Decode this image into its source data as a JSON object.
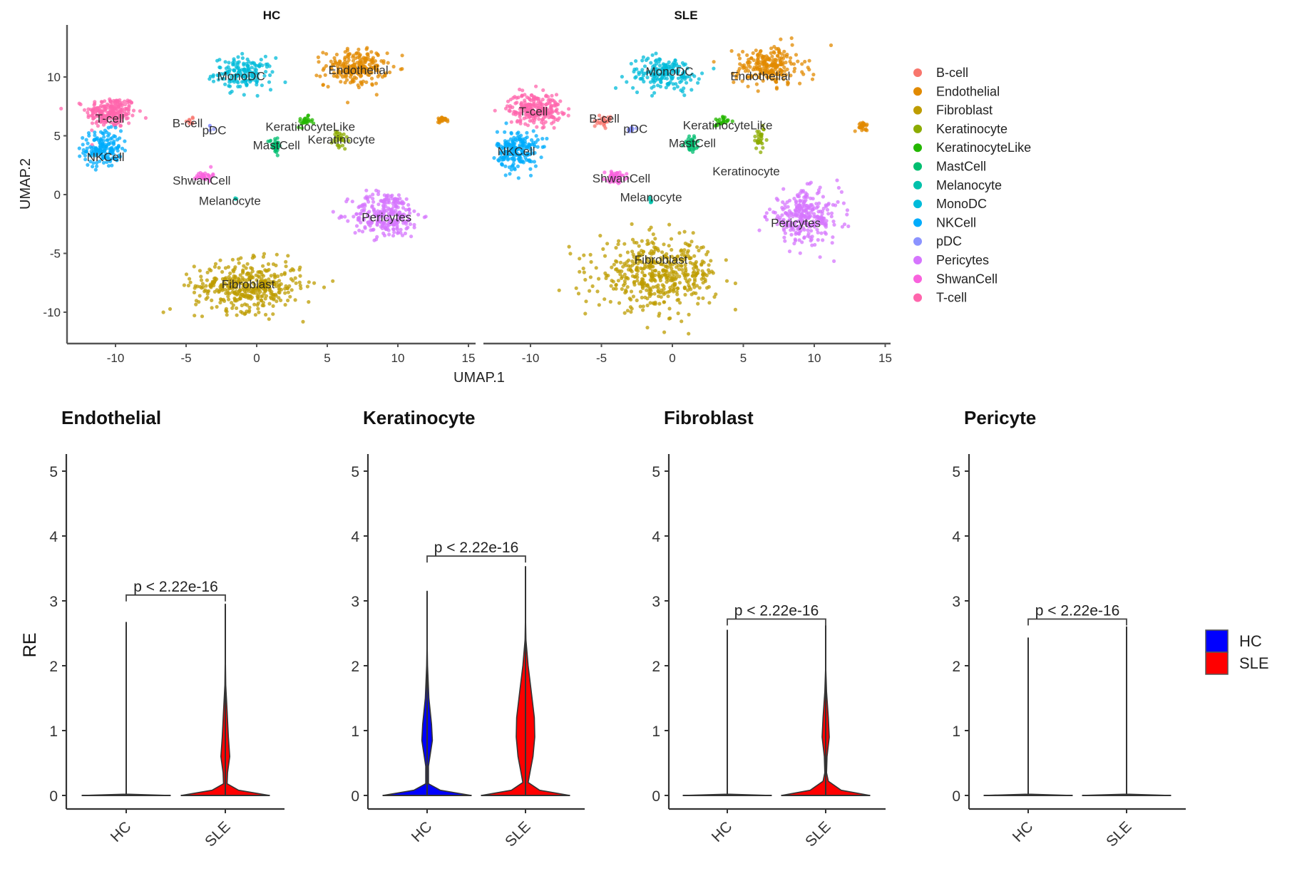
{
  "chart_data": [
    {
      "type": "scatter",
      "kind": "umap",
      "panels": [
        {
          "title": "HC",
          "clusters": [
            {
              "name": "T-cell",
              "label": [
                -10.4,
                6.5
              ],
              "center": [
                -10.3,
                7.0
              ],
              "spread": [
                1.6,
                1.2
              ],
              "n": 220
            },
            {
              "name": "NKCell",
              "label": [
                -10.7,
                3.2
              ],
              "center": [
                -10.9,
                3.9
              ],
              "spread": [
                1.2,
                1.4
              ],
              "n": 160
            },
            {
              "name": "MonoDC",
              "label": [
                -1.1,
                10.1
              ],
              "center": [
                -0.9,
                10.3
              ],
              "spread": [
                1.9,
                1.2
              ],
              "n": 160
            },
            {
              "name": "Endothelial",
              "label": [
                7.2,
                10.6
              ],
              "center": [
                7.0,
                10.8
              ],
              "spread": [
                2.0,
                1.4
              ],
              "n": 220
            },
            {
              "name": "B-cell",
              "label": [
                -4.9,
                6.1
              ],
              "center": [
                -4.6,
                6.3
              ],
              "spread": [
                0.3,
                0.3
              ],
              "n": 8
            },
            {
              "name": "pDC",
              "label": [
                -3.0,
                5.5
              ],
              "center": [
                -3.2,
                5.6
              ],
              "spread": [
                0.2,
                0.2
              ],
              "n": 4
            },
            {
              "name": "KeratinocyteLike",
              "label": [
                3.8,
                5.8
              ],
              "center": [
                3.4,
                6.2
              ],
              "spread": [
                0.5,
                0.4
              ],
              "n": 25
            },
            {
              "name": "Keratinocyte",
              "label": [
                6.0,
                4.7
              ],
              "center": [
                5.9,
                4.6
              ],
              "spread": [
                0.5,
                0.8
              ],
              "n": 30
            },
            {
              "name": "MastCell",
              "label": [
                1.4,
                4.2
              ],
              "center": [
                1.3,
                4.2
              ],
              "spread": [
                0.35,
                0.6
              ],
              "n": 40
            },
            {
              "name": "ShwanCell",
              "label": [
                -3.9,
                1.2
              ],
              "center": [
                -3.7,
                1.6
              ],
              "spread": [
                0.5,
                0.4
              ],
              "n": 30
            },
            {
              "name": "Melanocyte",
              "label": [
                -1.9,
                -0.5
              ],
              "center": [
                -1.5,
                -0.3
              ],
              "spread": [
                0.1,
                0.1
              ],
              "n": 3
            },
            {
              "name": "Pericytes",
              "label": [
                9.2,
                -1.9
              ],
              "center": [
                9.2,
                -1.7
              ],
              "spread": [
                2.2,
                1.8
              ],
              "n": 260
            },
            {
              "name": "Fibroblast",
              "label": [
                -0.6,
                -7.6
              ],
              "center": [
                -0.6,
                -7.8
              ],
              "spread": [
                3.4,
                1.9
              ],
              "n": 420
            },
            {
              "name": "Endothelial",
              "label": null,
              "center": [
                13.2,
                6.4
              ],
              "spread": [
                0.4,
                0.2
              ],
              "n": 25
            }
          ]
        },
        {
          "title": "SLE",
          "clusters": [
            {
              "name": "T-cell",
              "label": [
                -9.8,
                7.1
              ],
              "center": [
                -9.7,
                7.3
              ],
              "spread": [
                1.7,
                1.2
              ],
              "n": 240
            },
            {
              "name": "NKCell",
              "label": [
                -11.0,
                3.7
              ],
              "center": [
                -10.9,
                3.8
              ],
              "spread": [
                1.3,
                1.5
              ],
              "n": 200
            },
            {
              "name": "MonoDC",
              "label": [
                -0.2,
                10.5
              ],
              "center": [
                -0.6,
                10.3
              ],
              "spread": [
                2.3,
                1.3
              ],
              "n": 180
            },
            {
              "name": "Endothelial",
              "label": [
                6.2,
                10.1
              ],
              "center": [
                6.8,
                10.9
              ],
              "spread": [
                2.2,
                1.5
              ],
              "n": 220
            },
            {
              "name": "B-cell",
              "label": [
                -4.8,
                6.5
              ],
              "center": [
                -4.8,
                6.2
              ],
              "spread": [
                0.4,
                0.4
              ],
              "n": 25
            },
            {
              "name": "pDC",
              "label": [
                -2.6,
                5.6
              ],
              "center": [
                -2.9,
                5.6
              ],
              "spread": [
                0.3,
                0.2
              ],
              "n": 12
            },
            {
              "name": "KeratinocyteLike",
              "label": [
                3.9,
                5.9
              ],
              "center": [
                3.4,
                6.2
              ],
              "spread": [
                0.5,
                0.4
              ],
              "n": 25
            },
            {
              "name": "Keratinocyte",
              "label": [
                5.2,
                2.0
              ],
              "center": [
                6.2,
                4.8
              ],
              "spread": [
                0.5,
                0.9
              ],
              "n": 30
            },
            {
              "name": "MastCell",
              "label": [
                1.4,
                4.4
              ],
              "center": [
                1.3,
                4.3
              ],
              "spread": [
                0.4,
                0.6
              ],
              "n": 45
            },
            {
              "name": "ShwanCell",
              "label": [
                -3.6,
                1.4
              ],
              "center": [
                -4.0,
                1.5
              ],
              "spread": [
                0.7,
                0.4
              ],
              "n": 45
            },
            {
              "name": "Melanocyte",
              "label": [
                -1.5,
                -0.2
              ],
              "center": [
                -1.5,
                -0.5
              ],
              "spread": [
                0.1,
                0.3
              ],
              "n": 6
            },
            {
              "name": "Pericytes",
              "label": [
                8.7,
                -2.4
              ],
              "center": [
                9.3,
                -1.9
              ],
              "spread": [
                2.3,
                2.0
              ],
              "n": 280
            },
            {
              "name": "Fibroblast",
              "label": [
                -0.8,
                -5.5
              ],
              "center": [
                -1.0,
                -6.8
              ],
              "spread": [
                3.8,
                2.6
              ],
              "n": 480
            },
            {
              "name": "Endothelial",
              "label": null,
              "center": [
                13.4,
                5.8
              ],
              "spread": [
                0.4,
                0.3
              ],
              "n": 25
            }
          ]
        }
      ],
      "xlabel": "UMAP.1",
      "ylabel": "UMAP.2",
      "xlim": [
        -13.4,
        15.4
      ],
      "ylim": [
        -12.7,
        14.3
      ],
      "xticks": [
        -10,
        -5,
        0,
        5,
        10,
        15
      ],
      "yticks": [
        -10,
        -5,
        0,
        5,
        10
      ],
      "legend": {
        "position": "right",
        "items": [
          {
            "label": "B-cell",
            "color": "#F8766D"
          },
          {
            "label": "Endothelial",
            "color": "#E18A00"
          },
          {
            "label": "Fibroblast",
            "color": "#BE9C00"
          },
          {
            "label": "Keratinocyte",
            "color": "#8CAB00"
          },
          {
            "label": "KeratinocyteLike",
            "color": "#24B700"
          },
          {
            "label": "MastCell",
            "color": "#00BE70"
          },
          {
            "label": "Melanocyte",
            "color": "#00C1AB"
          },
          {
            "label": "MonoDC",
            "color": "#00BBDA"
          },
          {
            "label": "NKCell",
            "color": "#00ACFC"
          },
          {
            "label": "pDC",
            "color": "#8B93FF"
          },
          {
            "label": "Pericytes",
            "color": "#D575FE"
          },
          {
            "label": "ShwanCell",
            "color": "#F962DD"
          },
          {
            "label": "T-cell",
            "color": "#FF65AC"
          }
        ]
      }
    },
    {
      "type": "violin",
      "ylabel": "RE",
      "ylim": [
        -0.6,
        5.2
      ],
      "yticks": [
        0,
        1,
        2,
        3,
        4,
        5
      ],
      "categories": [
        "HC",
        "SLE"
      ],
      "group_colors": {
        "HC": "#0000FF",
        "SLE": "#FF0000"
      },
      "legend": {
        "position": "right",
        "items": [
          {
            "label": "HC",
            "color": "#0000FF"
          },
          {
            "label": "SLE",
            "color": "#FF0000"
          }
        ]
      },
      "panels": [
        {
          "title": "Endothelial",
          "pvalue_label": "p < 2.22e-16",
          "bracket_y": 3.09,
          "groups": [
            {
              "name": "HC",
              "max": 2.67,
              "profile": [
                [
                  0,
                  1.0
                ],
                [
                  0.02,
                  0.0
                ],
                [
                  2.67,
                  0.0
                ]
              ]
            },
            {
              "name": "SLE",
              "max": 2.95,
              "profile": [
                [
                  0,
                  1.0
                ],
                [
                  0.08,
                  0.3
                ],
                [
                  0.18,
                  0.04
                ],
                [
                  0.35,
                  0.05
                ],
                [
                  0.6,
                  0.1
                ],
                [
                  0.9,
                  0.07
                ],
                [
                  1.3,
                  0.04
                ],
                [
                  1.7,
                  0.01
                ],
                [
                  2.2,
                  0.0
                ],
                [
                  2.95,
                  0.0
                ]
              ]
            }
          ]
        },
        {
          "title": "Keratinocyte",
          "pvalue_label": "p < 2.22e-16",
          "bracket_y": 3.69,
          "groups": [
            {
              "name": "HC",
              "max": 3.15,
              "profile": [
                [
                  0,
                  1.0
                ],
                [
                  0.08,
                  0.3
                ],
                [
                  0.18,
                  0.03
                ],
                [
                  0.45,
                  0.03
                ],
                [
                  0.85,
                  0.12
                ],
                [
                  1.1,
                  0.1
                ],
                [
                  1.5,
                  0.04
                ],
                [
                  2.0,
                  0.01
                ],
                [
                  2.4,
                  0.0
                ],
                [
                  3.15,
                  0.0
                ]
              ]
            },
            {
              "name": "SLE",
              "max": 3.53,
              "profile": [
                [
                  0,
                  1.0
                ],
                [
                  0.08,
                  0.32
                ],
                [
                  0.2,
                  0.06
                ],
                [
                  0.35,
                  0.1
                ],
                [
                  0.6,
                  0.17
                ],
                [
                  0.9,
                  0.21
                ],
                [
                  1.2,
                  0.2
                ],
                [
                  1.6,
                  0.13
                ],
                [
                  2.0,
                  0.06
                ],
                [
                  2.4,
                  0.01
                ],
                [
                  2.8,
                  0.0
                ],
                [
                  3.53,
                  0.0
                ]
              ]
            }
          ]
        },
        {
          "title": "Fibroblast",
          "pvalue_label": "p < 2.22e-16",
          "bracket_y": 2.72,
          "groups": [
            {
              "name": "HC",
              "max": 2.55,
              "profile": [
                [
                  0,
                  1.0
                ],
                [
                  0.02,
                  0.0
                ],
                [
                  2.55,
                  0.0
                ]
              ]
            },
            {
              "name": "SLE",
              "max": 2.62,
              "profile": [
                [
                  0,
                  1.0
                ],
                [
                  0.08,
                  0.35
                ],
                [
                  0.22,
                  0.06
                ],
                [
                  0.35,
                  0.02
                ],
                [
                  0.6,
                  0.03
                ],
                [
                  0.9,
                  0.08
                ],
                [
                  1.2,
                  0.06
                ],
                [
                  1.6,
                  0.02
                ],
                [
                  2.0,
                  0.0
                ],
                [
                  2.62,
                  0.0
                ]
              ]
            }
          ]
        },
        {
          "title": "Pericyte",
          "pvalue_label": "p < 2.22e-16",
          "bracket_y": 2.72,
          "groups": [
            {
              "name": "HC",
              "max": 2.43,
              "profile": [
                [
                  0,
                  1.0
                ],
                [
                  0.02,
                  0.0
                ],
                [
                  2.43,
                  0.0
                ]
              ]
            },
            {
              "name": "SLE",
              "max": 2.6,
              "profile": [
                [
                  0,
                  1.0
                ],
                [
                  0.02,
                  0.0
                ],
                [
                  2.6,
                  0.0
                ]
              ]
            }
          ]
        }
      ]
    }
  ]
}
